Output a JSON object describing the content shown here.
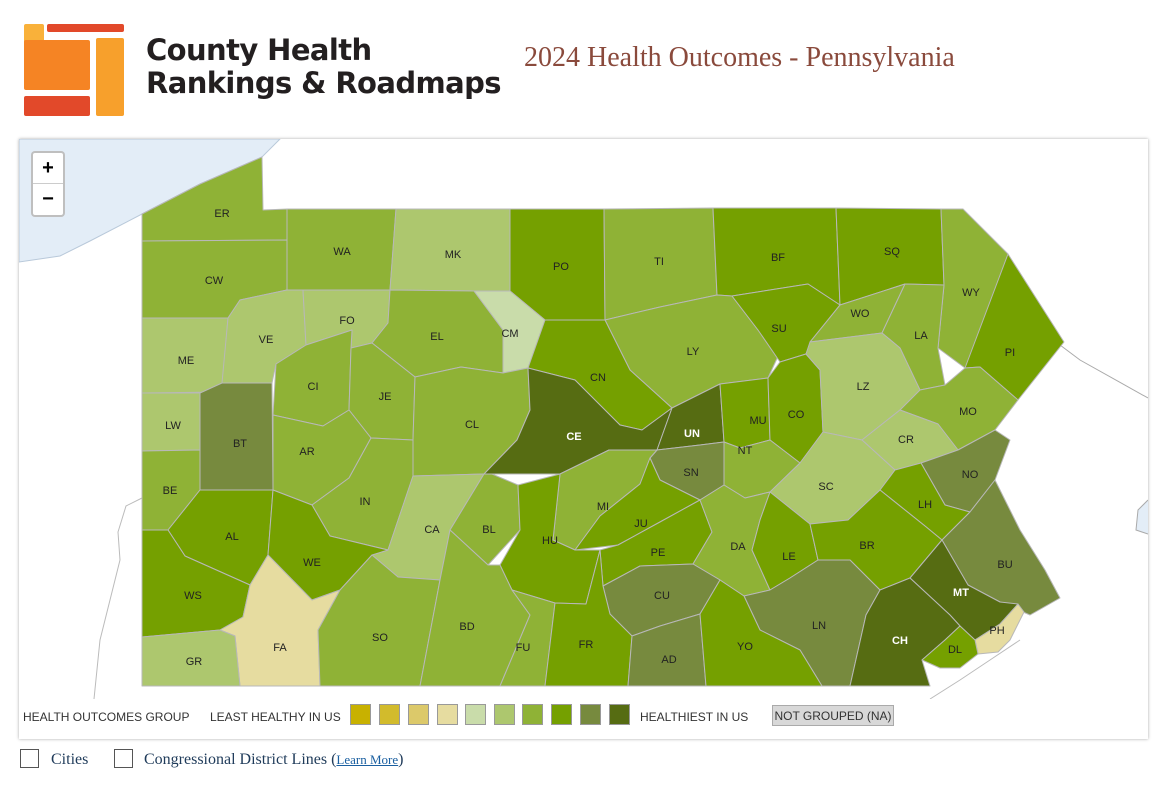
{
  "header": {
    "brand_line1": "County Health",
    "brand_line2": "Rankings & Roadmaps",
    "title": "2024 Health Outcomes - Pennsylvania"
  },
  "colors": {
    "logo": [
      "#f7a02c",
      "#f58424",
      "#e2492a",
      "#f9b13a"
    ],
    "groups": [
      "#c8b100",
      "#d2bb2c",
      "#dcc96a",
      "#e6dca0",
      "#c9dcaa",
      "#adc76e",
      "#8fb236",
      "#75a000",
      "#778a3e",
      "#566c12"
    ],
    "water": "#e3edf7",
    "not_grouped": "#d8d8d8"
  },
  "zoom": {
    "in": "+",
    "out": "−"
  },
  "counties": [
    {
      "code": "ER",
      "group": 7
    },
    {
      "code": "CW",
      "group": 7
    },
    {
      "code": "WA",
      "group": 7
    },
    {
      "code": "MK",
      "group": 6
    },
    {
      "code": "PO",
      "group": 8
    },
    {
      "code": "TI",
      "group": 7
    },
    {
      "code": "BF",
      "group": 8
    },
    {
      "code": "SQ",
      "group": 8
    },
    {
      "code": "WY",
      "group": 7
    },
    {
      "code": "ME",
      "group": 6
    },
    {
      "code": "VE",
      "group": 6
    },
    {
      "code": "FO",
      "group": 6
    },
    {
      "code": "EL",
      "group": 7
    },
    {
      "code": "CM",
      "group": 5
    },
    {
      "code": "LY",
      "group": 7
    },
    {
      "code": "SU",
      "group": 8
    },
    {
      "code": "WO",
      "group": 7
    },
    {
      "code": "LA",
      "group": 7
    },
    {
      "code": "PI",
      "group": 8
    },
    {
      "code": "CI",
      "group": 7
    },
    {
      "code": "JE",
      "group": 7
    },
    {
      "code": "CN",
      "group": 8
    },
    {
      "code": "LW",
      "group": 6
    },
    {
      "code": "BT",
      "group": 9
    },
    {
      "code": "CL",
      "group": 7
    },
    {
      "code": "CE",
      "group": 10
    },
    {
      "code": "UN",
      "group": 10
    },
    {
      "code": "MU",
      "group": 8
    },
    {
      "code": "CO",
      "group": 8
    },
    {
      "code": "LZ",
      "group": 6
    },
    {
      "code": "MO",
      "group": 7
    },
    {
      "code": "AR",
      "group": 7
    },
    {
      "code": "NT",
      "group": 7
    },
    {
      "code": "CR",
      "group": 6
    },
    {
      "code": "SN",
      "group": 9
    },
    {
      "code": "BE",
      "group": 7
    },
    {
      "code": "IN",
      "group": 7
    },
    {
      "code": "MI",
      "group": 7
    },
    {
      "code": "SC",
      "group": 6
    },
    {
      "code": "NO",
      "group": 9
    },
    {
      "code": "LH",
      "group": 8
    },
    {
      "code": "AL",
      "group": 8
    },
    {
      "code": "CA",
      "group": 6
    },
    {
      "code": "BL",
      "group": 7
    },
    {
      "code": "HU",
      "group": 8
    },
    {
      "code": "JU",
      "group": 8
    },
    {
      "code": "WE",
      "group": 8
    },
    {
      "code": "PE",
      "group": 8
    },
    {
      "code": "DA",
      "group": 7
    },
    {
      "code": "LE",
      "group": 8
    },
    {
      "code": "BR",
      "group": 8
    },
    {
      "code": "BU",
      "group": 9
    },
    {
      "code": "WS",
      "group": 8
    },
    {
      "code": "MT",
      "group": 10
    },
    {
      "code": "CU",
      "group": 9
    },
    {
      "code": "LN",
      "group": 9
    },
    {
      "code": "FA",
      "group": 4
    },
    {
      "code": "SO",
      "group": 7
    },
    {
      "code": "BD",
      "group": 7
    },
    {
      "code": "FU",
      "group": 7
    },
    {
      "code": "FR",
      "group": 8
    },
    {
      "code": "AD",
      "group": 9
    },
    {
      "code": "YO",
      "group": 8
    },
    {
      "code": "CH",
      "group": 10
    },
    {
      "code": "PH",
      "group": 4
    },
    {
      "code": "GR",
      "group": 6
    },
    {
      "code": "DL",
      "group": 8
    }
  ],
  "legend": {
    "title": "HEALTH OUTCOMES GROUP",
    "low": "LEAST HEALTHY IN US",
    "high": "HEALTHIEST IN US",
    "na": "NOT GROUPED (NA)"
  },
  "options": {
    "cities": "Cities",
    "districts": "Congressional District Lines",
    "learn_more": "Learn More"
  }
}
